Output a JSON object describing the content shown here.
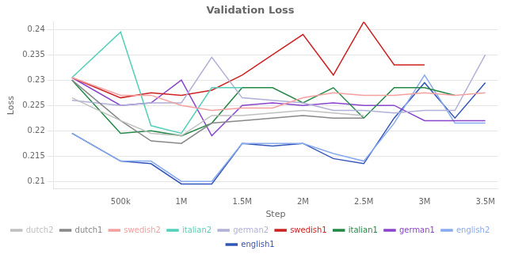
{
  "chart_data": {
    "type": "line",
    "title": "Validation Loss",
    "x_label": "Step",
    "y_label": "Loss",
    "series": [
      {
        "name": "dutch2",
        "color": "#c0c0c0",
        "x": [
          100000,
          500000,
          750000,
          1000000,
          1250000,
          1500000,
          1750000,
          2000000,
          2250000,
          2500000
        ],
        "values": [
          0.2265,
          0.222,
          0.2195,
          0.219,
          0.223,
          0.223,
          0.2235,
          0.224,
          0.2235,
          0.223
        ]
      },
      {
        "name": "dutch1",
        "color": "#888888",
        "x": [
          100000,
          500000,
          750000,
          1000000,
          1250000,
          1500000,
          1750000,
          2000000,
          2250000,
          2500000
        ],
        "values": [
          0.23,
          0.222,
          0.218,
          0.2175,
          0.2215,
          0.222,
          0.2225,
          0.223,
          0.2225,
          0.2225
        ]
      },
      {
        "name": "swedish2",
        "color": "#f4a0a0",
        "x": [
          100000,
          500000,
          750000,
          1000000,
          1250000,
          1500000,
          1750000,
          2000000,
          2250000,
          2500000,
          2750000,
          3000000,
          3250000,
          3500000
        ],
        "values": [
          0.2305,
          0.227,
          0.227,
          0.225,
          0.224,
          0.2245,
          0.2245,
          0.2265,
          0.2275,
          0.227,
          0.227,
          0.2275,
          0.227,
          0.2275
        ]
      },
      {
        "name": "italian2",
        "color": "#55d0b8",
        "x": [
          100000,
          500000,
          750000,
          1000000,
          1250000,
          1500000
        ],
        "values": [
          0.2305,
          0.2395,
          0.221,
          0.2195,
          0.2285,
          0.2285
        ]
      },
      {
        "name": "german2",
        "color": "#b0b0d8",
        "x": [
          100000,
          500000,
          750000,
          1000000,
          1250000,
          1500000,
          1750000,
          2000000,
          2250000,
          2500000,
          2750000,
          3000000,
          3250000,
          3500000
        ],
        "values": [
          0.226,
          0.225,
          0.2255,
          0.2255,
          0.2345,
          0.2265,
          0.226,
          0.2255,
          0.224,
          0.224,
          0.2235,
          0.224,
          0.224,
          0.235
        ]
      },
      {
        "name": "swedish1",
        "color": "#cc2222",
        "x": [
          100000,
          500000,
          750000,
          1000000,
          1250000,
          1500000,
          1750000,
          2000000,
          2250000,
          2500000,
          2750000,
          3000000
        ],
        "values": [
          0.2305,
          0.2265,
          0.2275,
          0.227,
          0.228,
          0.231,
          0.235,
          0.239,
          0.231,
          0.2415,
          0.233,
          0.233
        ]
      },
      {
        "name": "italian1",
        "color": "#228844",
        "x": [
          100000,
          500000,
          750000,
          1000000,
          1250000,
          1500000,
          1750000,
          2000000,
          2250000,
          2500000,
          2750000,
          3000000,
          3250000
        ],
        "values": [
          0.23,
          0.2195,
          0.22,
          0.219,
          0.2215,
          0.2285,
          0.2285,
          0.2255,
          0.2285,
          0.2225,
          0.2285,
          0.2285,
          0.227
        ]
      },
      {
        "name": "german1",
        "color": "#8844cc",
        "x": [
          100000,
          500000,
          750000,
          1000000,
          1250000,
          1500000,
          1750000,
          2000000,
          2250000,
          2500000,
          2750000,
          3000000,
          3250000,
          3500000
        ],
        "values": [
          0.2305,
          0.225,
          0.2255,
          0.23,
          0.219,
          0.225,
          0.2255,
          0.225,
          0.2255,
          0.225,
          0.225,
          0.222,
          0.222,
          0.222
        ]
      },
      {
        "name": "english2",
        "color": "#88aaee",
        "x": [
          100000,
          500000,
          750000,
          1000000,
          1250000,
          1500000,
          1750000,
          2000000,
          2250000,
          2500000,
          2750000,
          3000000,
          3250000,
          3500000
        ],
        "values": [
          0.2195,
          0.214,
          0.214,
          0.21,
          0.21,
          0.2175,
          0.2175,
          0.2175,
          0.2155,
          0.214,
          0.2215,
          0.231,
          0.2215,
          0.2215
        ]
      },
      {
        "name": "english1",
        "color": "#3355bb",
        "x": [
          100000,
          500000,
          750000,
          1000000,
          1250000,
          1500000,
          1750000,
          2000000,
          2250000,
          2500000,
          2750000,
          3000000,
          3250000,
          3500000
        ],
        "values": [
          0.2195,
          0.214,
          0.2135,
          0.2095,
          0.2095,
          0.2175,
          0.217,
          0.2175,
          0.2145,
          0.2135,
          0.2225,
          0.2295,
          0.2225,
          0.2295
        ]
      }
    ],
    "xlim": [
      -50000,
      3600000
    ],
    "xticks": [
      {
        "value": 500000,
        "label": "500k"
      },
      {
        "value": 1000000,
        "label": "1M"
      },
      {
        "value": 1500000,
        "label": "1.5M"
      },
      {
        "value": 2000000,
        "label": "2M"
      },
      {
        "value": 2500000,
        "label": "2.5M"
      },
      {
        "value": 3000000,
        "label": "3M"
      },
      {
        "value": 3500000,
        "label": "3.5M"
      }
    ],
    "ylim": [
      0.2085,
      0.2415
    ],
    "yticks": [
      0.21,
      0.215,
      0.22,
      0.225,
      0.23,
      0.235,
      0.24
    ],
    "grid": "y",
    "legend": "bottom",
    "marker": "none"
  }
}
